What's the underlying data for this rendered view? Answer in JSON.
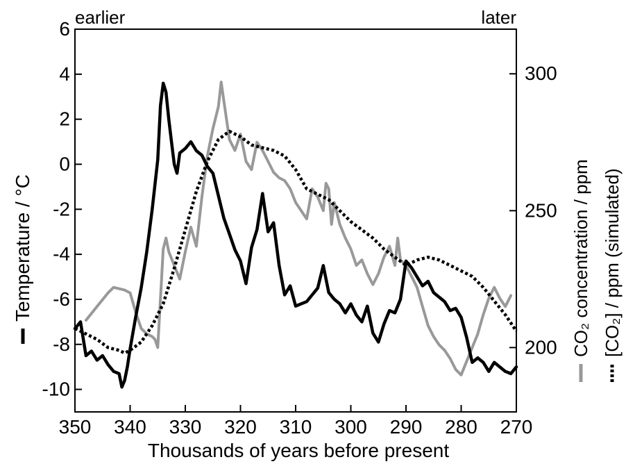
{
  "chart_data": {
    "type": "line",
    "title": "",
    "corner_left_label": "earlier",
    "corner_right_label": "later",
    "xlabel": "Thousands of years before present",
    "xlim": [
      350,
      270
    ],
    "xticks": [
      350,
      340,
      330,
      320,
      310,
      300,
      290,
      280,
      270
    ],
    "ylabel": "Temperature / °C",
    "ylim": [
      -11,
      6
    ],
    "yticks": [
      6,
      4,
      2,
      0,
      -2,
      -4,
      -6,
      -8,
      -10
    ],
    "y2label_co2": "CO₂ concentration / ppm",
    "y2label_sim": "[CO₂] / ppm (simulated)",
    "y2lim": [
      176.5,
      316.3
    ],
    "y2ticks": [
      300,
      250,
      200
    ],
    "grid": false,
    "legend": "beside axis labels",
    "colors": {
      "temperature": "#000000",
      "co2": "#999999",
      "co2_simulated": "#000000"
    },
    "series": [
      {
        "name": "Temperature",
        "axis": "left",
        "style": "solid",
        "x": [
          350,
          349,
          348,
          347,
          346,
          345,
          344,
          343,
          342,
          341.5,
          341,
          340.5,
          340,
          339,
          338,
          337,
          336,
          335,
          334.5,
          334,
          333.5,
          333,
          332.5,
          332,
          331.5,
          331,
          330,
          329,
          328,
          327,
          326,
          325,
          324,
          323,
          322,
          321,
          320,
          319,
          318,
          317,
          316,
          315,
          314,
          313,
          312,
          311,
          310,
          309,
          308,
          307,
          306,
          305,
          304,
          303,
          302,
          301,
          300,
          299,
          298,
          297,
          296,
          295,
          294,
          293,
          292,
          291,
          290,
          289,
          288,
          287,
          286,
          285,
          284,
          283,
          282,
          281,
          280,
          279,
          278,
          277,
          276,
          275,
          274,
          273,
          272,
          271,
          270
        ],
        "values": [
          -7.3,
          -7.0,
          -8.5,
          -8.3,
          -8.7,
          -8.5,
          -8.9,
          -9.2,
          -9.3,
          -9.9,
          -9.6,
          -9.0,
          -8.2,
          -6.8,
          -5.5,
          -3.9,
          -2.0,
          0.2,
          2.6,
          3.6,
          3.2,
          2.0,
          1.0,
          0.0,
          -0.4,
          0.5,
          0.7,
          1.0,
          0.6,
          0.4,
          -0.1,
          -0.4,
          -1.4,
          -2.4,
          -3.1,
          -3.8,
          -4.3,
          -5.3,
          -3.7,
          -2.9,
          -1.3,
          -3.0,
          -2.6,
          -4.5,
          -5.8,
          -5.4,
          -6.3,
          -6.2,
          -6.1,
          -5.8,
          -5.5,
          -4.5,
          -5.7,
          -6.0,
          -6.2,
          -6.6,
          -6.2,
          -6.7,
          -7.0,
          -6.3,
          -7.5,
          -7.9,
          -7.1,
          -6.5,
          -6.6,
          -6.0,
          -4.3,
          -4.6,
          -5.0,
          -5.4,
          -5.2,
          -5.7,
          -5.9,
          -6.1,
          -6.5,
          -6.4,
          -6.8,
          -7.7,
          -8.8,
          -8.6,
          -8.8,
          -9.2,
          -8.8,
          -9.0,
          -9.2,
          -9.3,
          -9.0
        ]
      },
      {
        "name": "CO₂ concentration",
        "axis": "right",
        "style": "solid",
        "x": [
          348,
          346,
          344,
          343,
          341,
          340,
          339,
          338,
          337,
          336,
          335.5,
          335,
          334,
          333.5,
          333,
          332,
          331,
          330,
          329,
          328,
          327,
          326,
          325,
          324,
          323.5,
          323,
          322,
          321,
          320,
          319,
          318,
          317,
          316,
          315,
          314,
          313,
          312,
          311,
          310,
          309,
          308,
          307,
          306,
          305,
          304.5,
          304,
          303.5,
          303,
          302,
          301,
          300,
          299,
          298,
          297,
          296,
          295,
          294,
          293,
          292,
          291.5,
          291,
          290,
          289,
          288,
          287,
          286,
          285,
          284,
          283,
          282,
          281,
          280,
          279,
          278,
          277,
          276,
          275,
          274,
          273,
          272,
          271
        ],
        "values": [
          210,
          215,
          220,
          222,
          221,
          220,
          213,
          207,
          205,
          204,
          203,
          200,
          236,
          240,
          235,
          230,
          225,
          235,
          244,
          237,
          255,
          270,
          280,
          288,
          297,
          290,
          276,
          272,
          278,
          268,
          265,
          275,
          272,
          268,
          264,
          262,
          261,
          258,
          253,
          250,
          247,
          258,
          255,
          250,
          260,
          258,
          245,
          253,
          245,
          240,
          236,
          230,
          232,
          227,
          223,
          227,
          233,
          237,
          230,
          240,
          232,
          230,
          226,
          222,
          215,
          208,
          204,
          201,
          199,
          196,
          192,
          190,
          195,
          200,
          205,
          212,
          218,
          222,
          218,
          215,
          219
        ]
      },
      {
        "name": "[CO₂] simulated",
        "axis": "right",
        "style": "dotted",
        "x": [
          350,
          348,
          346,
          344,
          342,
          341,
          340,
          338,
          336,
          334,
          332,
          330,
          328,
          326,
          324,
          322,
          320,
          318,
          316,
          314,
          312,
          310,
          308,
          306,
          304,
          302,
          300,
          298,
          296,
          294,
          292,
          290,
          288,
          286,
          284,
          282,
          280,
          278,
          276,
          274,
          272,
          270
        ],
        "values": [
          207,
          205,
          203,
          200,
          199,
          198,
          199,
          202,
          208,
          216,
          229,
          243,
          257,
          268,
          276,
          279,
          277,
          274,
          273,
          272,
          270,
          265,
          258,
          256,
          254,
          250,
          246,
          243,
          240,
          236,
          233,
          230,
          232,
          233,
          232,
          230,
          228,
          226,
          222,
          217,
          212,
          206
        ]
      }
    ]
  }
}
